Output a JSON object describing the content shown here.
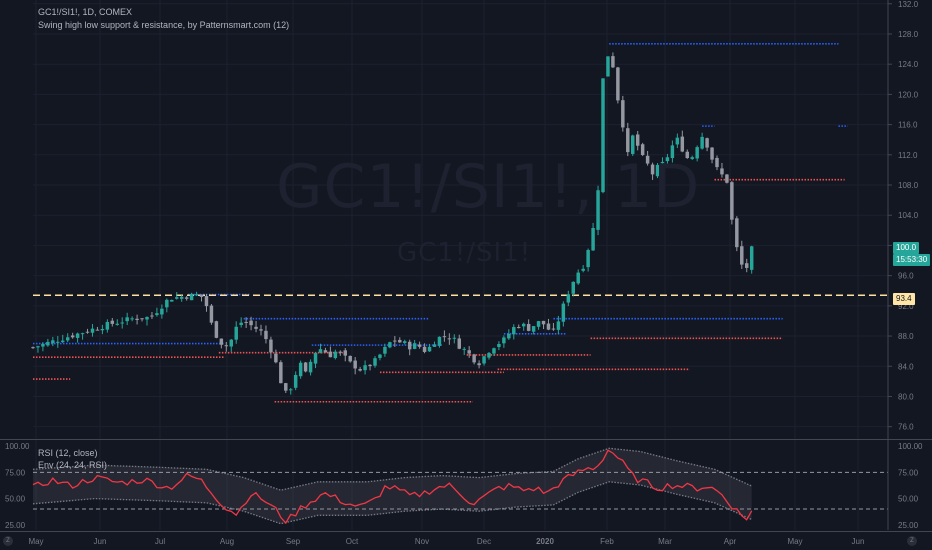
{
  "header": {
    "symbol_line": "GC1!/SI1!, 1D, COMEX",
    "indicator_line": "Swing high low support & resistance, by Patternsmart.com (12)"
  },
  "watermark": {
    "big": "GC1!/SI1!, 1D",
    "small": "GC1!/SI1!"
  },
  "price_scale": {
    "ticks": [
      "132.0",
      "128.0",
      "124.0",
      "120.0",
      "116.0",
      "112.0",
      "108.0",
      "104.0",
      "100.0",
      "96.0",
      "92.0",
      "88.0",
      "84.0",
      "80.0",
      "76.0"
    ],
    "last_price": "100.0",
    "countdown": "15:53:30",
    "level_label": "93.4",
    "level_value": 93.4
  },
  "rsi_panel": {
    "label1": "RSI (12, close)",
    "label2": "Env (24, 24, RSI)",
    "ticks_left": [
      "100.00",
      "75.00",
      "50.00",
      "25.00"
    ],
    "ticks_right": [
      "100.00",
      "75.00",
      "50.00",
      "25.00"
    ]
  },
  "time_axis": [
    "May",
    "Jun",
    "Jul",
    "Aug",
    "Sep",
    "Oct",
    "Nov",
    "Dec",
    "2020",
    "Feb",
    "Mar",
    "Apr",
    "May",
    "Jun"
  ],
  "bottom_icons": {
    "left": "Z",
    "right": "Z"
  },
  "colors": {
    "background": "#131722",
    "up": "#26a69a",
    "down": "#9598a1",
    "resistance": "#2962ff",
    "support": "#ef5350",
    "rsi": "#f23645",
    "envelope": "#787b86",
    "level": "#ffe0a0"
  },
  "chart_data": [
    {
      "type": "candlestick",
      "ylim": [
        74.5,
        132.5
      ],
      "x_months": [
        "May",
        "Jun",
        "Jul",
        "Aug",
        "Sep",
        "Oct",
        "Nov",
        "Dec",
        "2020",
        "Feb",
        "Mar",
        "Apr",
        "May",
        "Jun"
      ],
      "close_path": [
        [
          0,
          86.5
        ],
        [
          4,
          87.5
        ],
        [
          8,
          88.5
        ],
        [
          12,
          89.5
        ],
        [
          16,
          90.3
        ],
        [
          19,
          90.5
        ],
        [
          22,
          93.0
        ],
        [
          25,
          93.3
        ],
        [
          27,
          93.5
        ],
        [
          28,
          92.0
        ],
        [
          29,
          89.0
        ],
        [
          30,
          87.5
        ],
        [
          31,
          86.5
        ],
        [
          32,
          87.5
        ],
        [
          33,
          89.5
        ],
        [
          34,
          90.0
        ],
        [
          35,
          89.5
        ],
        [
          36,
          89.0
        ],
        [
          37,
          88.5
        ],
        [
          38,
          87.0
        ],
        [
          39,
          85.0
        ],
        [
          40,
          82.0
        ],
        [
          41,
          80.0
        ],
        [
          42,
          82.0
        ],
        [
          43,
          84.5
        ],
        [
          44,
          83.0
        ],
        [
          45,
          85.0
        ],
        [
          46,
          86.5
        ],
        [
          47,
          86.0
        ],
        [
          48,
          85.5
        ],
        [
          49,
          86.0
        ],
        [
          50,
          85.5
        ],
        [
          51,
          84.5
        ],
        [
          53,
          83.5
        ],
        [
          54,
          84.0
        ],
        [
          55,
          84.5
        ],
        [
          56,
          85.5
        ],
        [
          57,
          86.5
        ],
        [
          58,
          87.5
        ],
        [
          60,
          87.0
        ],
        [
          61,
          86.5
        ],
        [
          62,
          87.0
        ],
        [
          63,
          86.0
        ],
        [
          64,
          86.5
        ],
        [
          65,
          87.5
        ],
        [
          66,
          88.0
        ],
        [
          67,
          88.0
        ],
        [
          68,
          87.5
        ],
        [
          69,
          86.5
        ],
        [
          70,
          86.0
        ],
        [
          71,
          85.0
        ],
        [
          72,
          84.5
        ],
        [
          73,
          85.5
        ],
        [
          74,
          86.5
        ],
        [
          75,
          87.0
        ],
        [
          76,
          87.5
        ],
        [
          77,
          88.5
        ],
        [
          78,
          89.5
        ],
        [
          79,
          89.5
        ],
        [
          80,
          89.0
        ],
        [
          81,
          89.5
        ],
        [
          82,
          90.0
        ],
        [
          83,
          89.0
        ],
        [
          84,
          88.5
        ],
        [
          85,
          90.5
        ],
        [
          86,
          93.0
        ],
        [
          87,
          95.0
        ],
        [
          88,
          96.5
        ],
        [
          89,
          97.5
        ],
        [
          90,
          101.0
        ],
        [
          91,
          104.0
        ],
        [
          92,
          122.0
        ],
        [
          93,
          126.0
        ],
        [
          93.5,
          124.5
        ],
        [
          94,
          121.0
        ],
        [
          95,
          117.0
        ],
        [
          96,
          112.0
        ],
        [
          97,
          115.0
        ],
        [
          98,
          112.0
        ],
        [
          99,
          111.0
        ],
        [
          100,
          109.5
        ],
        [
          101,
          110.5
        ],
        [
          102,
          111.0
        ],
        [
          103,
          113.0
        ],
        [
          104,
          114.0
        ],
        [
          105,
          112.5
        ],
        [
          106,
          111.0
        ],
        [
          107,
          113.0
        ],
        [
          108,
          114.5
        ],
        [
          109,
          113.0
        ],
        [
          110,
          110.5
        ],
        [
          111,
          109.5
        ],
        [
          112,
          108.5
        ],
        [
          113,
          102.0
        ],
        [
          114,
          98.0
        ],
        [
          115,
          96.5
        ],
        [
          116,
          99.5
        ]
      ],
      "resistance_levels": [
        {
          "from": 0,
          "to": 31,
          "y": 87.0
        },
        {
          "from": 25,
          "to": 35,
          "y": 93.5
        },
        {
          "from": 34,
          "to": 64,
          "y": 90.3
        },
        {
          "from": 45,
          "to": 66,
          "y": 86.8
        },
        {
          "from": 76,
          "to": 86,
          "y": 88.3
        },
        {
          "from": 84,
          "to": 121,
          "y": 90.3
        },
        {
          "from": 93,
          "to": 130,
          "y": 126.7
        },
        {
          "from": 108,
          "to": 110,
          "y": 115.8
        },
        {
          "from": 130,
          "to": 131.5,
          "y": 115.8
        }
      ],
      "support_levels": [
        {
          "from": 0,
          "to": 6,
          "y": 82.3
        },
        {
          "from": 0,
          "to": 31,
          "y": 85.2
        },
        {
          "from": 30,
          "to": 50,
          "y": 85.8
        },
        {
          "from": 39,
          "to": 71,
          "y": 79.3
        },
        {
          "from": 56,
          "to": 76,
          "y": 83.2
        },
        {
          "from": 70,
          "to": 90,
          "y": 85.5
        },
        {
          "from": 75,
          "to": 106,
          "y": 83.6
        },
        {
          "from": 90,
          "to": 121,
          "y": 87.7
        },
        {
          "from": 110,
          "to": 131,
          "y": 108.7
        }
      ],
      "horizontal_level": 93.4
    },
    {
      "type": "line",
      "title": "RSI (12, close)",
      "ylim": [
        20,
        105
      ],
      "rsi": [
        [
          0,
          60
        ],
        [
          3,
          68
        ],
        [
          6,
          62
        ],
        [
          10,
          70
        ],
        [
          14,
          65
        ],
        [
          18,
          68
        ],
        [
          22,
          60
        ],
        [
          25,
          72
        ],
        [
          27,
          68
        ],
        [
          29,
          55
        ],
        [
          31,
          42
        ],
        [
          33,
          35
        ],
        [
          35,
          55
        ],
        [
          37,
          50
        ],
        [
          39,
          40
        ],
        [
          41,
          28
        ],
        [
          43,
          40
        ],
        [
          45,
          48
        ],
        [
          47,
          55
        ],
        [
          49,
          50
        ],
        [
          51,
          45
        ],
        [
          53,
          42
        ],
        [
          55,
          48
        ],
        [
          57,
          62
        ],
        [
          59,
          58
        ],
        [
          61,
          52
        ],
        [
          63,
          55
        ],
        [
          65,
          60
        ],
        [
          67,
          63
        ],
        [
          69,
          55
        ],
        [
          71,
          45
        ],
        [
          73,
          52
        ],
        [
          75,
          60
        ],
        [
          77,
          62
        ],
        [
          79,
          58
        ],
        [
          81,
          60
        ],
        [
          83,
          55
        ],
        [
          85,
          65
        ],
        [
          87,
          72
        ],
        [
          89,
          78
        ],
        [
          91,
          80
        ],
        [
          93,
          98
        ],
        [
          95,
          85
        ],
        [
          97,
          70
        ],
        [
          99,
          65
        ],
        [
          101,
          60
        ],
        [
          103,
          63
        ],
        [
          105,
          62
        ],
        [
          107,
          60
        ],
        [
          109,
          62
        ],
        [
          111,
          55
        ],
        [
          113,
          42
        ],
        [
          115,
          30
        ],
        [
          116,
          38
        ]
      ],
      "envelope_upper": [
        [
          0,
          78
        ],
        [
          10,
          82
        ],
        [
          20,
          80
        ],
        [
          28,
          78
        ],
        [
          34,
          70
        ],
        [
          40,
          58
        ],
        [
          46,
          66
        ],
        [
          54,
          66
        ],
        [
          60,
          70
        ],
        [
          66,
          72
        ],
        [
          72,
          70
        ],
        [
          78,
          74
        ],
        [
          84,
          76
        ],
        [
          88,
          88
        ],
        [
          93,
          98
        ],
        [
          98,
          95
        ],
        [
          104,
          86
        ],
        [
          110,
          78
        ],
        [
          116,
          62
        ]
      ],
      "envelope_lower": [
        [
          0,
          45
        ],
        [
          10,
          50
        ],
        [
          20,
          48
        ],
        [
          28,
          46
        ],
        [
          34,
          38
        ],
        [
          40,
          26
        ],
        [
          46,
          34
        ],
        [
          54,
          34
        ],
        [
          60,
          38
        ],
        [
          66,
          40
        ],
        [
          72,
          38
        ],
        [
          78,
          42
        ],
        [
          84,
          44
        ],
        [
          88,
          56
        ],
        [
          93,
          66
        ],
        [
          98,
          63
        ],
        [
          104,
          54
        ],
        [
          110,
          46
        ],
        [
          116,
          30
        ]
      ],
      "levels": [
        75,
        40
      ]
    }
  ]
}
